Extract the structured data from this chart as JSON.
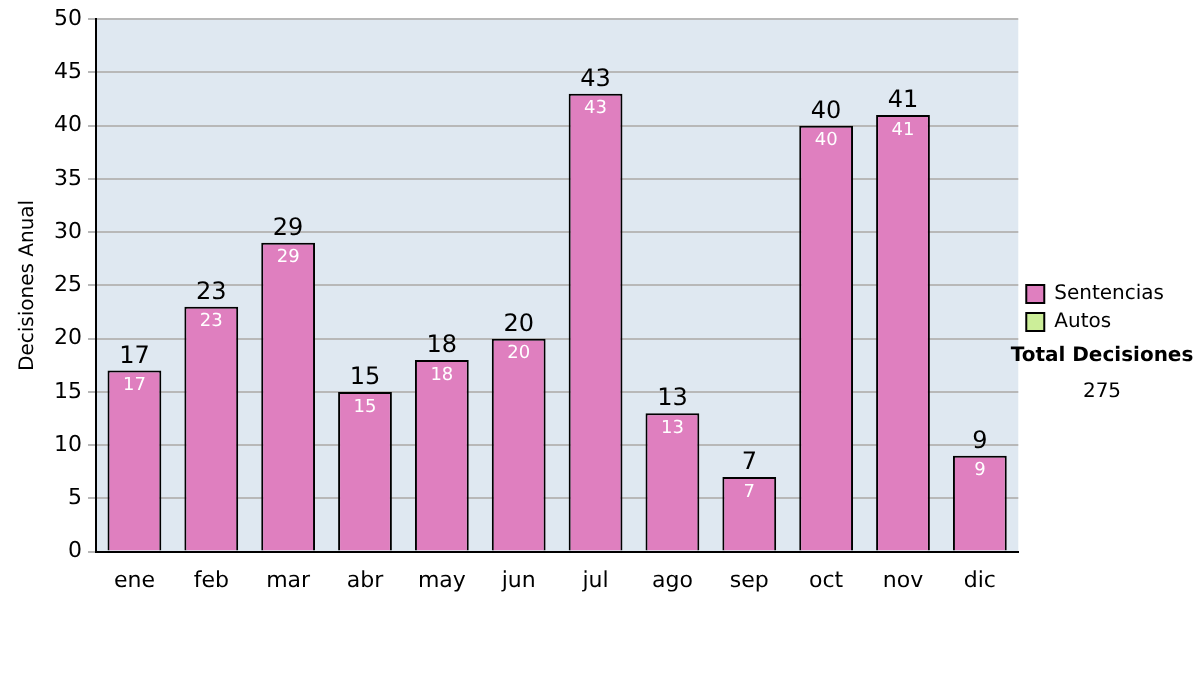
{
  "chart_data": {
    "type": "bar",
    "stacked": true,
    "ylabel": "Decisiones Anual",
    "categories": [
      "ene",
      "feb",
      "mar",
      "abr",
      "may",
      "jun",
      "jul",
      "ago",
      "sep",
      "oct",
      "nov",
      "dic"
    ],
    "series": [
      {
        "name": "Sentencias",
        "color": "#df7fbf",
        "values": [
          17,
          23,
          29,
          15,
          18,
          20,
          43,
          13,
          7,
          40,
          41,
          9
        ],
        "value_labels": [
          "17",
          "23",
          "29",
          "15",
          "18",
          "20",
          "43",
          "13",
          "7",
          "40",
          "41",
          "9"
        ]
      },
      {
        "name": "Autos",
        "color": "#ccee99",
        "values": [
          0,
          0,
          0,
          0,
          0,
          0,
          0,
          0,
          0,
          0,
          0,
          0
        ]
      }
    ],
    "totals": [
      "17",
      "23",
      "29",
      "15",
      "18",
      "20",
      "43",
      "13",
      "7",
      "40",
      "41",
      "9"
    ],
    "ylim": [
      0,
      50
    ],
    "yticks": [
      0,
      5,
      10,
      15,
      20,
      25,
      30,
      35,
      40,
      45,
      50
    ],
    "grid": "y",
    "legend": "right",
    "annotations": [
      "Total Decisiones",
      "275"
    ]
  }
}
